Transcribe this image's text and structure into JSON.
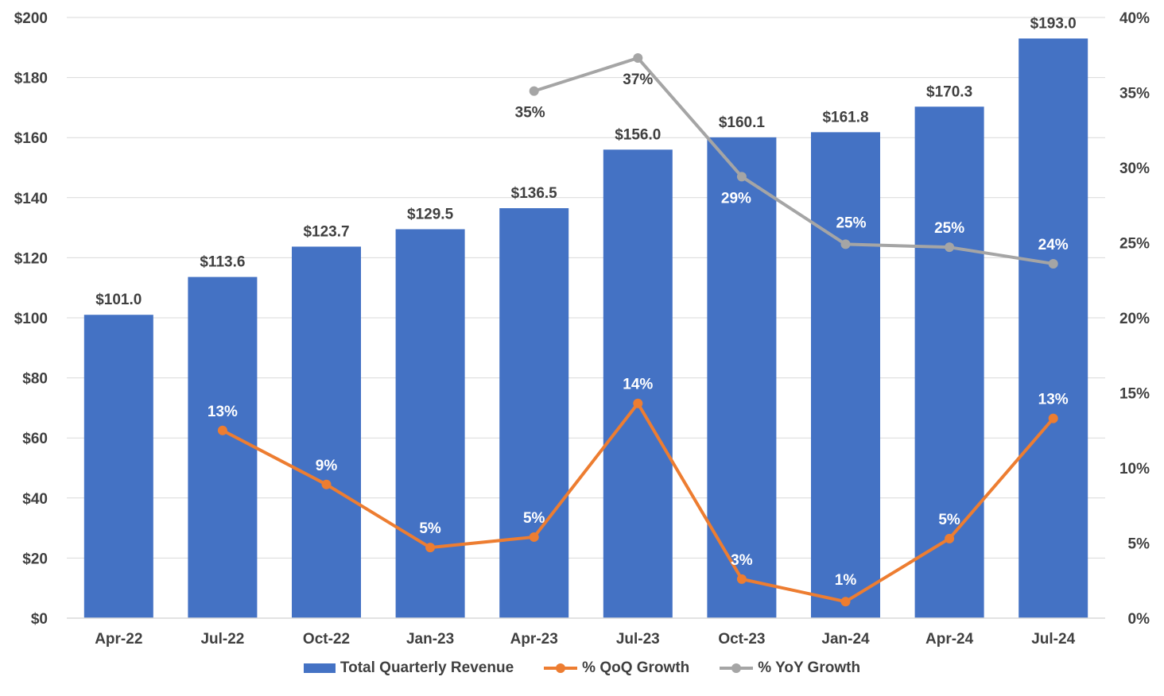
{
  "colors": {
    "bar": "#4472C4",
    "qoq": "#ED7D31",
    "yoy": "#A5A5A5",
    "grid": "#D9D9D9",
    "text": "#404040"
  },
  "chart_data": {
    "type": "bar",
    "categories": [
      "Apr-22",
      "Jul-22",
      "Oct-22",
      "Jan-23",
      "Apr-23",
      "Jul-23",
      "Oct-23",
      "Jan-24",
      "Apr-24",
      "Jul-24"
    ],
    "series": [
      {
        "name": "Total Quarterly Revenue",
        "type": "bar",
        "axis": "left",
        "values": [
          101.0,
          113.6,
          123.7,
          129.5,
          136.5,
          156.0,
          160.1,
          161.8,
          170.3,
          193.0
        ],
        "labels": [
          "$101.0",
          "$113.6",
          "$123.7",
          "$129.5",
          "$136.5",
          "$156.0",
          "$160.1",
          "$161.8",
          "$170.3",
          "$193.0"
        ]
      },
      {
        "name": "% QoQ Growth",
        "type": "line",
        "axis": "right",
        "values": [
          null,
          12.5,
          8.9,
          4.7,
          5.4,
          14.3,
          2.6,
          1.1,
          5.3,
          13.3
        ],
        "labels": [
          null,
          "13%",
          "9%",
          "5%",
          "5%",
          "14%",
          "3%",
          "1%",
          "5%",
          "13%"
        ]
      },
      {
        "name": "% YoY Growth",
        "type": "line",
        "axis": "right",
        "values": [
          null,
          null,
          null,
          null,
          35.1,
          37.3,
          29.4,
          24.9,
          24.7,
          23.6
        ],
        "labels": [
          null,
          null,
          null,
          null,
          "35%",
          "37%",
          "29%",
          "25%",
          "25%",
          "24%"
        ]
      }
    ],
    "y_left": {
      "min": 0,
      "max": 200,
      "step": 20,
      "ticks": [
        "$0",
        "$20",
        "$40",
        "$60",
        "$80",
        "$100",
        "$120",
        "$140",
        "$160",
        "$180",
        "$200"
      ]
    },
    "y_right": {
      "min": 0,
      "max": 40,
      "step": 5,
      "ticks": [
        "0%",
        "5%",
        "10%",
        "15%",
        "20%",
        "25%",
        "30%",
        "35%",
        "40%"
      ]
    },
    "grid": true,
    "legend": "bottom"
  }
}
